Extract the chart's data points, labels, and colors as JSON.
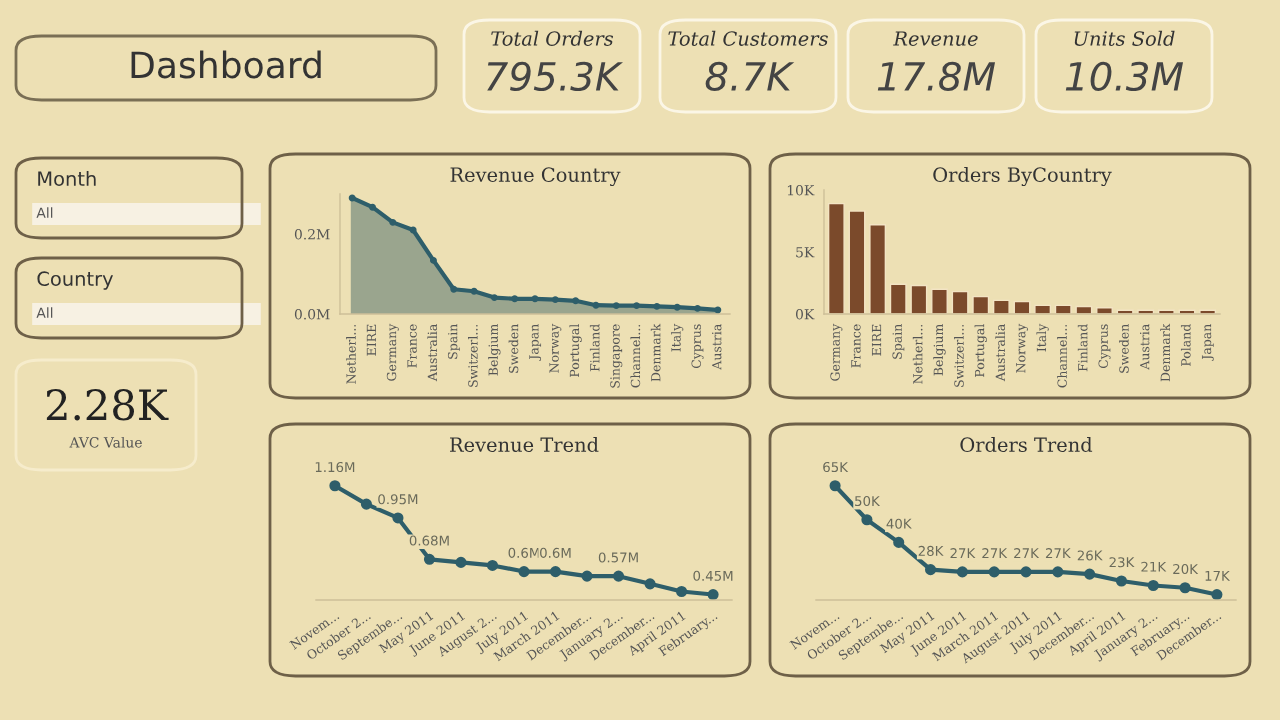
{
  "chart_data": [
    {
      "type": "other",
      "title": "Dashboard"
    },
    {
      "type": "other",
      "title": "Total Orders",
      "annotations": [
        "795.3K"
      ]
    },
    {
      "type": "other",
      "title": "Total Customers",
      "annotations": [
        "8.7K"
      ]
    },
    {
      "type": "other",
      "title": "Revenue",
      "annotations": [
        "17.8M"
      ]
    },
    {
      "type": "other",
      "title": "Units Sold",
      "annotations": [
        "10.3M"
      ]
    },
    {
      "type": "other",
      "title": "Month",
      "annotations": [
        "All"
      ]
    },
    {
      "type": "other",
      "title": "Country",
      "annotations": [
        "All"
      ]
    },
    {
      "type": "other",
      "title": "AVC Value",
      "annotations": [
        "2.28K"
      ]
    },
    {
      "type": "area",
      "title": "Revenue Country",
      "categories": [
        "Netherl...",
        "EIRE",
        "Germany",
        "France",
        "Australia",
        "Spain",
        "Switzerl...",
        "Belgium",
        "Sweden",
        "Japan",
        "Norway",
        "Portugal",
        "Finland",
        "Singapore",
        "Channel...",
        "Denmark",
        "Italy",
        "Cyprus",
        "Austria"
      ],
      "series": [
        {
          "color": "#2e5e6a",
          "values": [
            0.29,
            0.267,
            0.229,
            0.21,
            0.134,
            0.062,
            0.057,
            0.041,
            0.038,
            0.038,
            0.036,
            0.033,
            0.022,
            0.021,
            0.021,
            0.019,
            0.017,
            0.014,
            0.01
          ]
        }
      ],
      "ylim": [
        0,
        0.3
      ],
      "yticks": [
        {
          "value": 0,
          "label": "0.0M"
        },
        {
          "value": 0.2,
          "label": "0.2M"
        }
      ],
      "grid": false,
      "marker": "circle"
    },
    {
      "type": "bar",
      "title": "Orders ByCountry",
      "categories": [
        "Germany",
        "France",
        "EIRE",
        "Spain",
        "Netherl...",
        "Belgium",
        "Switzerl...",
        "Portugal",
        "Australia",
        "Norway",
        "Italy",
        "Channel...",
        "Finland",
        "Cyprus",
        "Sweden",
        "Austria",
        "Denmark",
        "Poland",
        "Japan"
      ],
      "series": [
        {
          "color": "#7b4a2b",
          "values": [
            8900,
            8300,
            7200,
            2400,
            2300,
            2000,
            1800,
            1400,
            1100,
            1000,
            700,
            700,
            600,
            500,
            300,
            300,
            300,
            300,
            300
          ]
        }
      ],
      "ylim": [
        0,
        10000
      ],
      "yticks": [
        {
          "value": 0,
          "label": "0K"
        },
        {
          "value": 5000,
          "label": "5K"
        },
        {
          "value": 10000,
          "label": "10K"
        }
      ],
      "grid": false
    },
    {
      "type": "line",
      "title": "Revenue Trend",
      "categories": [
        "Novem...",
        "October 2...",
        "Septembe...",
        "May 2011",
        "June 2011",
        "August 2...",
        "July 2011",
        "March 2011",
        "December...",
        "January 2...",
        "December...",
        "April 2011",
        "February..."
      ],
      "series": [
        {
          "color": "#2e5e6a",
          "values": [
            1.16,
            1.04,
            0.95,
            0.68,
            0.66,
            0.64,
            0.6,
            0.6,
            0.57,
            0.57,
            0.52,
            0.47,
            0.45
          ],
          "value_labels": [
            "1.16M",
            null,
            "0.95M",
            "0.68M",
            null,
            null,
            "0.6M",
            "0.6M",
            null,
            "0.57M",
            null,
            null,
            "0.45M"
          ]
        }
      ],
      "tick_labels": "x",
      "grid": false,
      "marker": "circle"
    },
    {
      "type": "line",
      "title": "Orders Trend",
      "categories": [
        "Novem...",
        "October 2...",
        "Septembe...",
        "May 2011",
        "June 2011",
        "March 2011",
        "August 2011",
        "July 2011",
        "December...",
        "April 2011",
        "January 2...",
        "February...",
        "December..."
      ],
      "series": [
        {
          "color": "#2e5e6a",
          "values": [
            65,
            50,
            40,
            28,
            27,
            27,
            27,
            27,
            26,
            23,
            21,
            20,
            17
          ],
          "value_labels": [
            "65K",
            "50K",
            "40K",
            "28K",
            "27K",
            "27K",
            "27K",
            "27K",
            "26K",
            "23K",
            "21K",
            "20K",
            "17K"
          ]
        }
      ],
      "tick_labels": "x",
      "grid": false,
      "marker": "circle"
    }
  ]
}
